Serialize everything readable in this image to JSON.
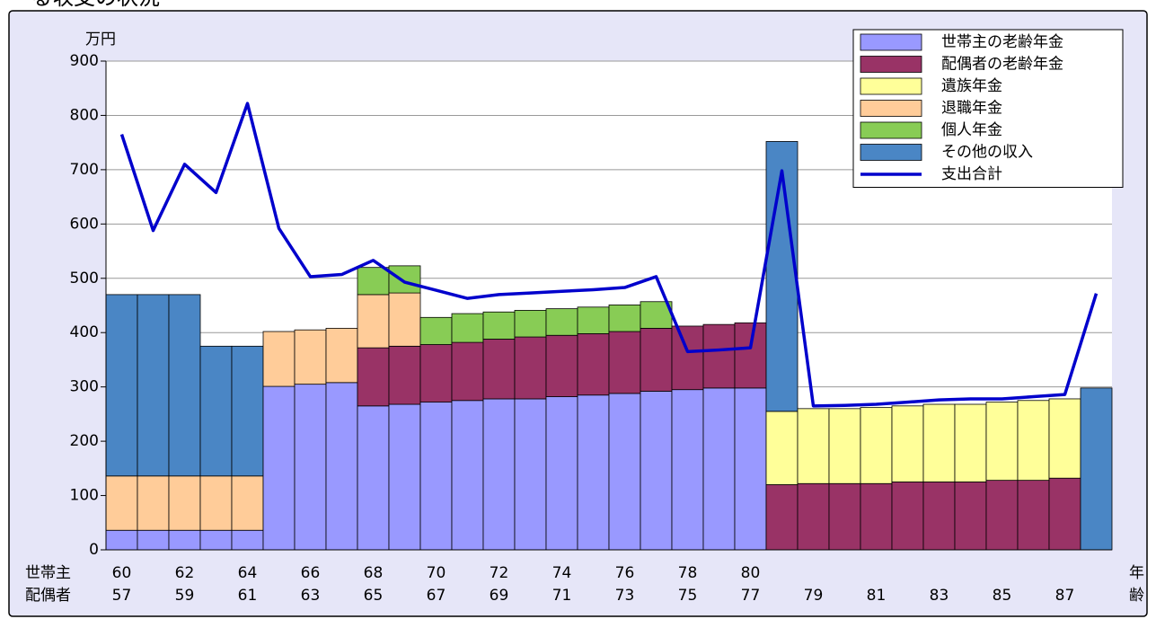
{
  "chart_data": {
    "type": "bar",
    "stacked": true,
    "title": "る収支の状況",
    "y_label": "万円",
    "x_row_labels": [
      "世帯主",
      "配偶者"
    ],
    "x_label": [
      "年",
      "齢"
    ],
    "categories": [
      "60",
      null,
      "62",
      null,
      "64",
      null,
      "66",
      null,
      "68",
      null,
      "70",
      null,
      "72",
      null,
      "74",
      null,
      "76",
      null,
      "78",
      null,
      "80",
      null,
      null,
      null,
      null,
      null,
      null,
      null,
      null,
      null,
      null,
      null
    ],
    "categories_spouse": [
      "57",
      null,
      "59",
      null,
      "61",
      null,
      "63",
      null,
      "65",
      null,
      "67",
      null,
      "69",
      null,
      "71",
      null,
      "73",
      null,
      "75",
      null,
      "77",
      null,
      "79",
      null,
      "81",
      null,
      "83",
      null,
      "85",
      null,
      "87",
      null
    ],
    "series": [
      {
        "name": "世帯主の老齢年金",
        "color": "#9999ff",
        "values": [
          36,
          36,
          36,
          36,
          36,
          301,
          305,
          308,
          265,
          268,
          272,
          275,
          278,
          278,
          282,
          285,
          288,
          292,
          295,
          298,
          298,
          0,
          0,
          0,
          0,
          0,
          0,
          0,
          0,
          0,
          0,
          0
        ]
      },
      {
        "name": "配偶者の老齢年金",
        "color": "#993366",
        "values": [
          0,
          0,
          0,
          0,
          0,
          0,
          0,
          0,
          107,
          107,
          106,
          107,
          110,
          114,
          113,
          113,
          114,
          116,
          117,
          117,
          120,
          120,
          122,
          122,
          122,
          125,
          125,
          125,
          128,
          128,
          132,
          0
        ]
      },
      {
        "name": "遺族年金",
        "color": "#ffff99",
        "values": [
          0,
          0,
          0,
          0,
          0,
          0,
          0,
          0,
          0,
          0,
          0,
          0,
          0,
          0,
          0,
          0,
          0,
          0,
          0,
          0,
          0,
          135,
          138,
          138,
          140,
          140,
          143,
          143,
          144,
          147,
          146,
          0
        ]
      },
      {
        "name": "退職年金",
        "color": "#ffcc99",
        "values": [
          100,
          100,
          100,
          100,
          100,
          101,
          100,
          100,
          98,
          98,
          0,
          0,
          0,
          0,
          0,
          0,
          0,
          0,
          0,
          0,
          0,
          0,
          0,
          0,
          0,
          0,
          0,
          0,
          0,
          0,
          0,
          0
        ]
      },
      {
        "name": "個人年金",
        "color": "#88cc55",
        "values": [
          0,
          0,
          0,
          0,
          0,
          0,
          0,
          0,
          50,
          50,
          50,
          53,
          50,
          49,
          49,
          49,
          49,
          49,
          0,
          0,
          0,
          0,
          0,
          0,
          0,
          0,
          0,
          0,
          0,
          0,
          0,
          0
        ]
      },
      {
        "name": "その他の収入",
        "color": "#4a86c5",
        "values": [
          334,
          334,
          334,
          239,
          239,
          0,
          0,
          0,
          0,
          0,
          0,
          0,
          0,
          0,
          0,
          0,
          0,
          0,
          0,
          0,
          0,
          497,
          0,
          0,
          0,
          0,
          0,
          0,
          0,
          0,
          0,
          298
        ]
      },
      {
        "name": "支出合計",
        "color": "#0000cc",
        "type": "line",
        "values": [
          765,
          588,
          710,
          658,
          822,
          592,
          503,
          507,
          533,
          493,
          478,
          463,
          470,
          473,
          476,
          479,
          483,
          503,
          365,
          368,
          372,
          698,
          265,
          266,
          268,
          272,
          276,
          278,
          278,
          282,
          286,
          472
        ]
      }
    ],
    "ylim": [
      0,
      900
    ],
    "yticks": [
      0,
      100,
      200,
      300,
      400,
      500,
      600,
      700,
      800,
      900
    ],
    "grid": true,
    "legend": "top-right"
  }
}
